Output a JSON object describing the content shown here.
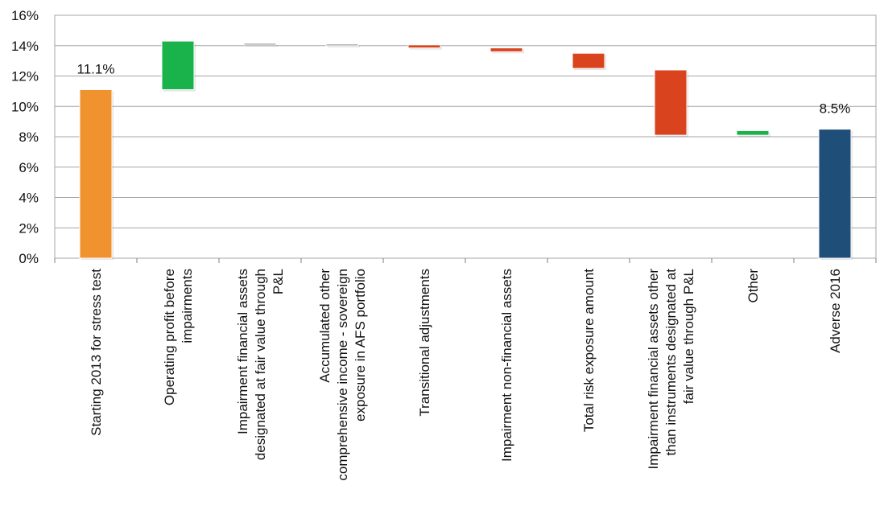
{
  "chart_data": {
    "type": "bar",
    "subtype": "waterfall",
    "title": "",
    "xlabel": "",
    "ylabel": "",
    "ylim": [
      0,
      16
    ],
    "y_ticks": [
      "0%",
      "2%",
      "4%",
      "6%",
      "8%",
      "10%",
      "12%",
      "14%",
      "16%"
    ],
    "y_tick_values": [
      0,
      2,
      4,
      6,
      8,
      10,
      12,
      14,
      16
    ],
    "grid": true,
    "legend": "none",
    "bars": [
      {
        "category": "Starting 2013 for stress test",
        "lines": [
          "Starting 2013 for stress test"
        ],
        "base": 0,
        "top": 11.1,
        "color": "#F0922E",
        "label": "11.1%"
      },
      {
        "category": "Operating profit before impairments",
        "lines": [
          "Operating profit before",
          "impairments"
        ],
        "base": 11.1,
        "top": 14.3,
        "color": "#19B24B",
        "label": ""
      },
      {
        "category": "Impairment financial assets designated at fair value through P&L",
        "lines": [
          "Impairment financial assets",
          "designated at fair value through",
          "P&L"
        ],
        "base": 14.1,
        "top": 14.15,
        "color": "#8C8C8C",
        "label": ""
      },
      {
        "category": "Accumulated other comprehensive income - sovereign exposure in AFS portfolio",
        "lines": [
          "Accumulated other",
          "comprehensive income - sovereign",
          "exposure in AFS portfolio"
        ],
        "base": 14.05,
        "top": 14.1,
        "color": "#8C8C8C",
        "label": ""
      },
      {
        "category": "Transitional adjustments",
        "lines": [
          "Transitional adjustments"
        ],
        "base": 13.85,
        "top": 14.05,
        "color": "#D9431E",
        "label": ""
      },
      {
        "category": "Impairment non-financial assets",
        "lines": [
          "Impairment non-financial assets"
        ],
        "base": 13.6,
        "top": 13.85,
        "color": "#D9431E",
        "label": ""
      },
      {
        "category": "Total risk exposure amount",
        "lines": [
          "Total risk exposure amount"
        ],
        "base": 12.5,
        "top": 13.5,
        "color": "#D9431E",
        "label": ""
      },
      {
        "category": "Impairment financial assets other than instruments designated at fair value through P&L",
        "lines": [
          "Impairment financial assets other",
          "than instruments designated at",
          "fair value through P&L"
        ],
        "base": 8.1,
        "top": 12.4,
        "color": "#D9431E",
        "label": ""
      },
      {
        "category": "Other",
        "lines": [
          "Other"
        ],
        "base": 8.1,
        "top": 8.4,
        "color": "#19B24B",
        "label": ""
      },
      {
        "category": "Adverse 2016",
        "lines": [
          "Adverse 2016"
        ],
        "base": 0,
        "top": 8.5,
        "color": "#1F4E79",
        "label": "8.5%"
      }
    ]
  }
}
